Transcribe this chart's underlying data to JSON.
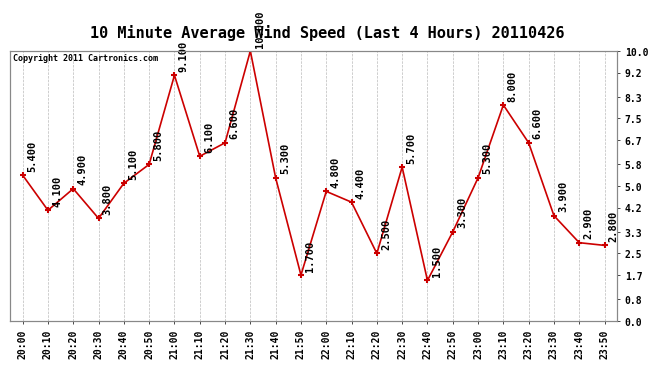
{
  "title": "10 Minute Average Wind Speed (Last 4 Hours) 20110426",
  "copyright": "Copyright 2011 Cartronics.com",
  "x_labels": [
    "20:00",
    "20:10",
    "20:20",
    "20:30",
    "20:40",
    "20:50",
    "21:00",
    "21:10",
    "21:20",
    "21:30",
    "21:40",
    "21:50",
    "22:00",
    "22:10",
    "22:20",
    "22:30",
    "22:40",
    "22:50",
    "23:00",
    "23:10",
    "23:20",
    "23:30",
    "23:40",
    "23:50"
  ],
  "y_values": [
    5.4,
    4.1,
    4.9,
    3.8,
    5.1,
    5.8,
    9.1,
    6.1,
    6.6,
    10.0,
    5.3,
    1.7,
    4.8,
    4.4,
    2.5,
    5.7,
    1.5,
    3.3,
    5.3,
    8.0,
    6.6,
    3.9,
    2.9,
    2.8
  ],
  "y_labels_right": [
    "0.0",
    "0.8",
    "1.7",
    "2.5",
    "3.3",
    "4.2",
    "5.0",
    "5.8",
    "6.7",
    "7.5",
    "8.3",
    "9.2",
    "10.0"
  ],
  "y_right_vals": [
    0.0,
    0.8,
    1.7,
    2.5,
    3.3,
    4.2,
    5.0,
    5.8,
    6.7,
    7.5,
    8.3,
    9.2,
    10.0
  ],
  "line_color": "#cc0000",
  "marker_color": "#cc0000",
  "bg_color": "#ffffff",
  "plot_bg_color": "#ffffff",
  "grid_color": "#bbbbbb",
  "title_fontsize": 11,
  "label_fontsize": 7,
  "annotation_fontsize": 7.5,
  "ylim": [
    0.0,
    10.0
  ],
  "data_labels": [
    "5.400",
    "4.100",
    "4.900",
    "3.800",
    "5.100",
    "5.800",
    "9.100",
    "6.100",
    "6.600",
    "10.000",
    "5.300",
    "1.700",
    "4.800",
    "4.400",
    "2.500",
    "5.700",
    "1.500",
    "3.300",
    "5.300",
    "8.000",
    "6.600",
    "3.900",
    "2.900",
    "2.800"
  ]
}
